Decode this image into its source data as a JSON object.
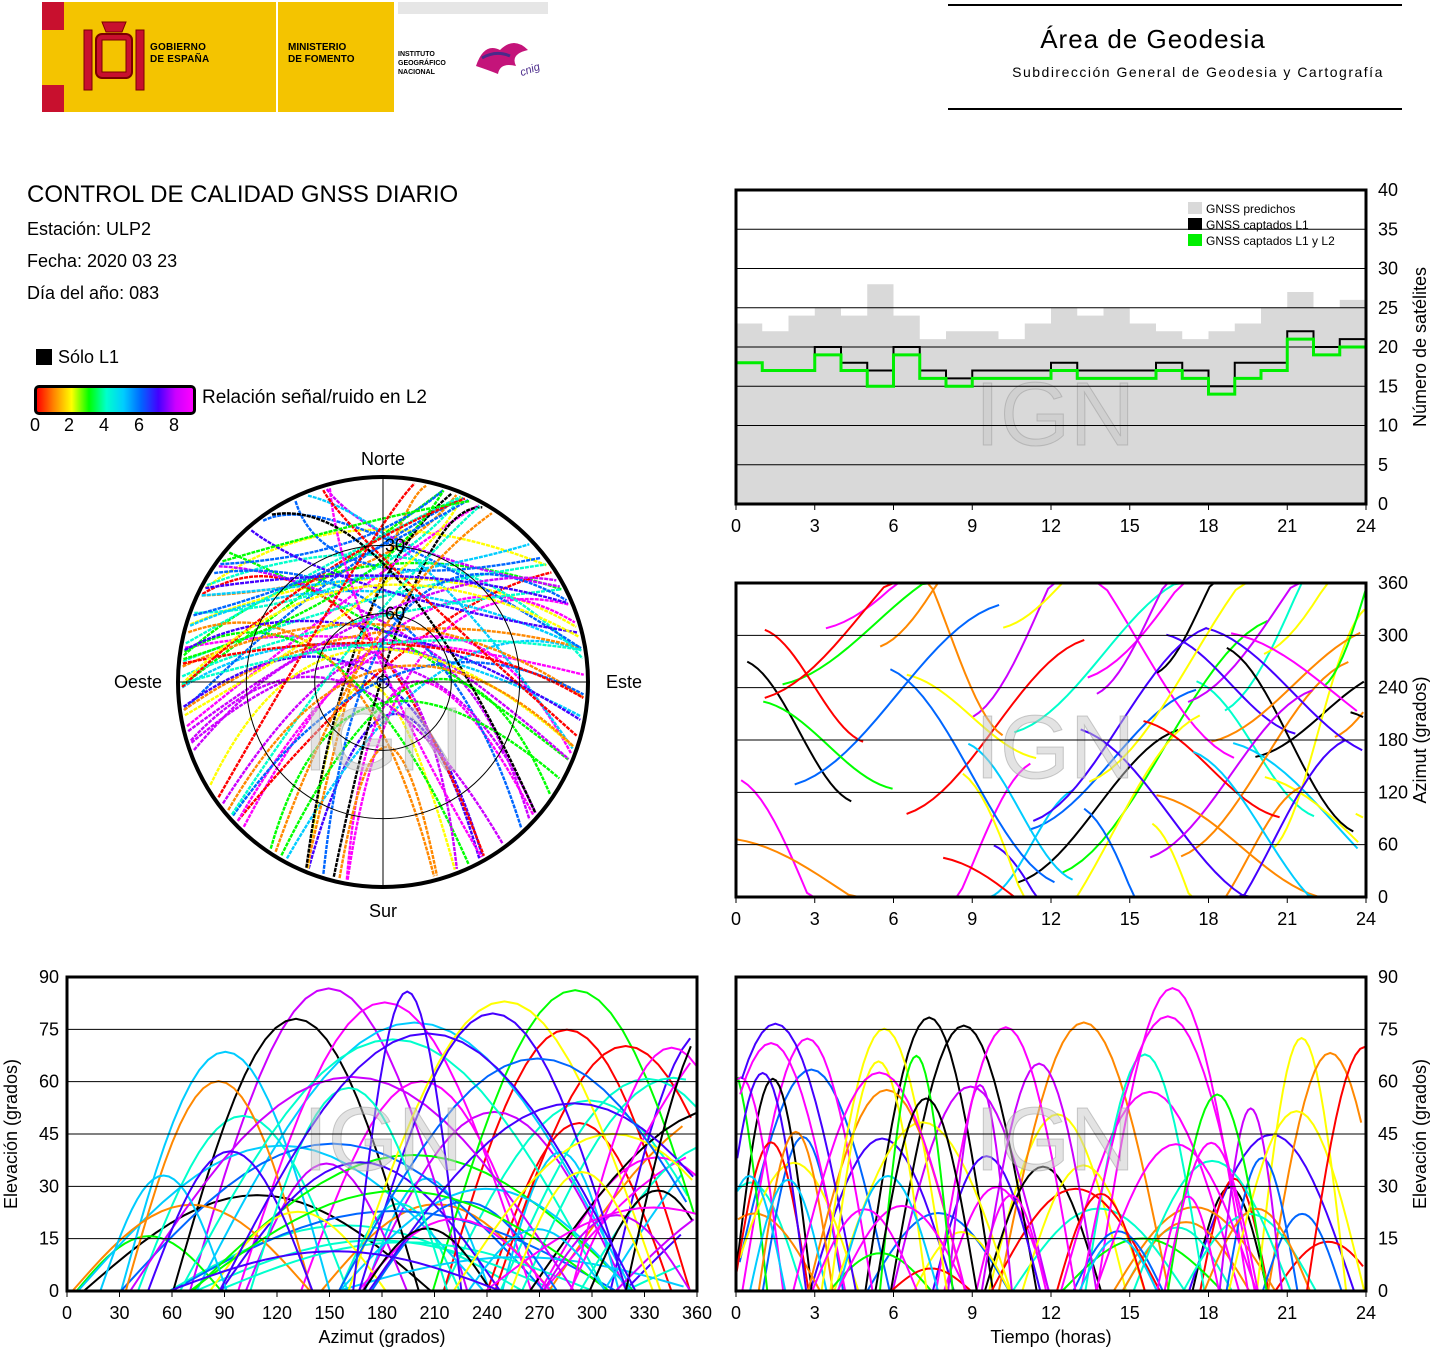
{
  "header": {
    "gobierno": "GOBIERNO\nDE ESPAÑA",
    "ministerio": "MINISTERIO\nDE FOMENTO",
    "instituto": "INSTITUTO\nGEOGRÁFICO\nNACIONAL",
    "cnig": "cnig",
    "area_title": "Área de Geodesia",
    "area_subtitle": "Subdirección General de Geodesia y Cartografía"
  },
  "info": {
    "title": "CONTROL DE CALIDAD GNSS DIARIO",
    "station": "Estación: ULP2",
    "date": "Fecha: 2020 03 23",
    "doy": "Día del año: 083"
  },
  "legend": {
    "only_l1": "Sólo L1",
    "snr_label": "Relación señal/ruido en L2",
    "snr_ticks": [
      "0",
      "2",
      "4",
      "6",
      "8"
    ]
  },
  "watermark": "IGN",
  "colors": {
    "predicted": "#d9d9d9",
    "l1": "#000000",
    "l1l2": "#00ee00",
    "snr_scale": [
      "#ff0000",
      "#ff8800",
      "#ffff00",
      "#00ff00",
      "#00ffcc",
      "#00ccff",
      "#0066ff",
      "#4400ff",
      "#cc00ff",
      "#ff00ff"
    ]
  },
  "chart_data": [
    {
      "id": "sat-count",
      "type": "area",
      "x_ticks": [
        "0",
        "3",
        "6",
        "9",
        "12",
        "15",
        "18",
        "21",
        "24"
      ],
      "y_ticks": [
        "0",
        "5",
        "10",
        "15",
        "20",
        "25",
        "30",
        "35",
        "40"
      ],
      "ylabel": "Número de satélites",
      "xlim": [
        0,
        24
      ],
      "ylim": [
        0,
        40
      ],
      "legend_position": "top-right",
      "x": [
        0,
        1,
        2,
        3,
        4,
        5,
        6,
        7,
        8,
        9,
        10,
        11,
        12,
        13,
        14,
        15,
        16,
        17,
        18,
        19,
        20,
        21,
        22,
        23,
        24
      ],
      "series": [
        {
          "name": "GNSS predichos",
          "values": [
            23,
            22,
            24,
            25,
            24,
            28,
            24,
            21,
            22,
            22,
            21,
            23,
            25,
            24,
            25,
            23,
            22,
            21,
            22,
            23,
            25,
            27,
            25,
            26,
            24
          ]
        },
        {
          "name": "GNSS captados L1",
          "values": [
            18,
            17,
            17,
            20,
            18,
            17,
            20,
            17,
            16,
            17,
            17,
            17,
            18,
            17,
            17,
            17,
            18,
            17,
            15,
            18,
            18,
            22,
            20,
            21,
            19
          ]
        },
        {
          "name": "GNSS captados L1 y L2",
          "values": [
            18,
            17,
            17,
            19,
            17,
            15,
            19,
            16,
            15,
            16,
            16,
            16,
            17,
            16,
            16,
            16,
            17,
            16,
            14,
            16,
            17,
            21,
            19,
            20,
            18
          ]
        }
      ]
    },
    {
      "id": "sky-plot",
      "type": "scatter",
      "directions": {
        "n": "Norte",
        "s": "Sur",
        "e": "Este",
        "w": "Oeste"
      },
      "elev_labels": [
        "30",
        "60"
      ]
    },
    {
      "id": "azimuth-time",
      "type": "scatter",
      "x_ticks": [
        "0",
        "3",
        "6",
        "9",
        "12",
        "15",
        "18",
        "21",
        "24"
      ],
      "y_ticks": [
        "0",
        "60",
        "120",
        "180",
        "240",
        "300",
        "360"
      ],
      "ylabel": "Azimut (grados)",
      "xlim": [
        0,
        24
      ],
      "ylim": [
        0,
        360
      ]
    },
    {
      "id": "elev-azimuth",
      "type": "scatter",
      "x_ticks": [
        "0",
        "30",
        "60",
        "90",
        "120",
        "150",
        "180",
        "210",
        "240",
        "270",
        "300",
        "330",
        "360"
      ],
      "y_ticks": [
        "0",
        "15",
        "30",
        "45",
        "60",
        "75",
        "90"
      ],
      "xlabel": "Azimut (grados)",
      "ylabel": "Elevación (grados)",
      "xlim": [
        0,
        360
      ],
      "ylim": [
        0,
        90
      ]
    },
    {
      "id": "elev-time",
      "type": "scatter",
      "x_ticks": [
        "0",
        "3",
        "6",
        "9",
        "12",
        "15",
        "18",
        "21",
        "24"
      ],
      "y_ticks": [
        "0",
        "15",
        "30",
        "45",
        "60",
        "75",
        "90"
      ],
      "xlabel": "Tiempo (horas)",
      "ylabel": "Elevación (grados)",
      "xlim": [
        0,
        24
      ],
      "ylim": [
        0,
        90
      ]
    }
  ]
}
